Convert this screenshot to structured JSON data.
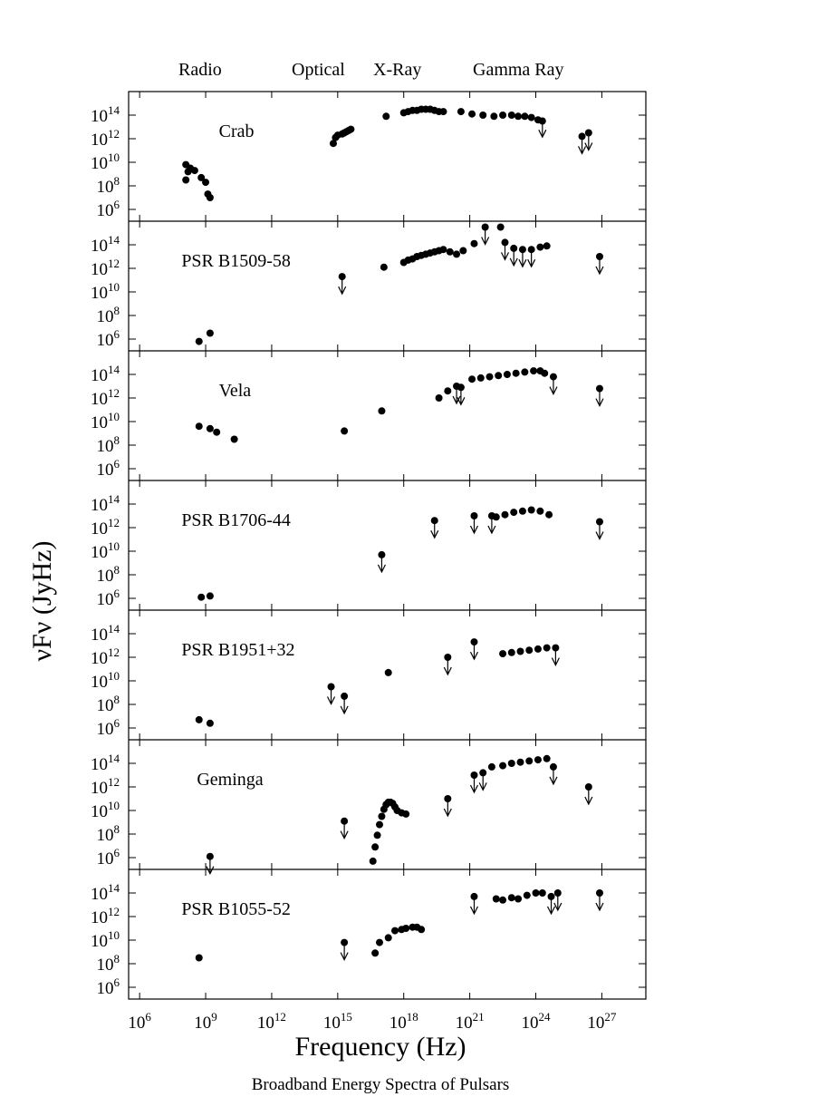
{
  "figure_caption": "Broadband Energy Spectra of Pulsars",
  "band_labels": [
    "Radio",
    "Optical",
    "X-Ray",
    "Gamma Ray"
  ],
  "chart_data": {
    "type": "scatter",
    "xlabel": "Frequency (Hz)",
    "ylabel": "νFν (JyHz)",
    "x_scale": "log",
    "y_scale": "log",
    "xlim_log10": [
      5.5,
      29
    ],
    "ylim_log10": [
      5,
      16
    ],
    "x_ticks_log10": [
      6,
      9,
      12,
      15,
      18,
      21,
      24,
      27
    ],
    "y_ticks_log10": [
      6,
      8,
      10,
      12,
      14
    ],
    "panels": [
      {
        "name": "Crab",
        "points": [
          [
            8.1,
            8.5
          ],
          [
            8.1,
            9.8
          ],
          [
            8.2,
            9.2
          ],
          [
            8.3,
            9.5
          ],
          [
            8.5,
            9.3
          ],
          [
            8.8,
            8.7
          ],
          [
            9.0,
            8.3
          ],
          [
            9.1,
            7.3
          ],
          [
            9.2,
            7.0
          ],
          [
            14.8,
            11.6
          ],
          [
            14.9,
            12.1
          ],
          [
            15.0,
            12.3
          ],
          [
            15.2,
            12.4
          ],
          [
            15.3,
            12.5
          ],
          [
            15.4,
            12.6
          ],
          [
            15.5,
            12.7
          ],
          [
            15.6,
            12.8
          ],
          [
            17.2,
            13.9
          ],
          [
            18.0,
            14.2
          ],
          [
            18.2,
            14.3
          ],
          [
            18.4,
            14.4
          ],
          [
            18.6,
            14.4
          ],
          [
            18.8,
            14.5
          ],
          [
            19.0,
            14.5
          ],
          [
            19.2,
            14.5
          ],
          [
            19.4,
            14.4
          ],
          [
            19.6,
            14.3
          ],
          [
            19.8,
            14.3
          ],
          [
            20.6,
            14.3
          ],
          [
            21.1,
            14.1
          ],
          [
            21.6,
            14.0
          ],
          [
            22.1,
            13.9
          ],
          [
            22.5,
            14.0
          ],
          [
            22.9,
            14.0
          ],
          [
            23.2,
            13.9
          ],
          [
            23.5,
            13.9
          ],
          [
            23.8,
            13.8
          ],
          [
            24.1,
            13.6
          ],
          [
            24.3,
            13.5
          ],
          [
            26.1,
            12.2
          ],
          [
            26.4,
            12.5
          ]
        ],
        "upper_limits": [
          [
            24.3,
            13.6
          ],
          [
            26.1,
            12.2
          ],
          [
            26.4,
            12.5
          ]
        ]
      },
      {
        "name": "PSR B1509-58",
        "points": [
          [
            8.7,
            5.8
          ],
          [
            9.2,
            6.5
          ],
          [
            15.2,
            11.3
          ],
          [
            17.1,
            12.1
          ],
          [
            18.0,
            12.5
          ],
          [
            18.2,
            12.7
          ],
          [
            18.4,
            12.8
          ],
          [
            18.6,
            13.0
          ],
          [
            18.8,
            13.1
          ],
          [
            19.0,
            13.2
          ],
          [
            19.2,
            13.3
          ],
          [
            19.4,
            13.4
          ],
          [
            19.6,
            13.5
          ],
          [
            19.8,
            13.6
          ],
          [
            20.1,
            13.4
          ],
          [
            20.4,
            13.2
          ],
          [
            20.7,
            13.5
          ],
          [
            21.2,
            14.1
          ],
          [
            21.7,
            15.5
          ],
          [
            22.4,
            15.5
          ],
          [
            22.6,
            14.2
          ],
          [
            23.0,
            13.7
          ],
          [
            23.4,
            13.6
          ],
          [
            23.8,
            13.6
          ],
          [
            24.2,
            13.8
          ],
          [
            24.5,
            13.9
          ],
          [
            26.9,
            13.0
          ]
        ],
        "upper_limits": [
          [
            15.2,
            11.3
          ],
          [
            21.7,
            15.5
          ],
          [
            22.6,
            14.2
          ],
          [
            23.0,
            13.7
          ],
          [
            23.4,
            13.6
          ],
          [
            23.8,
            13.6
          ],
          [
            26.9,
            13.0
          ]
        ]
      },
      {
        "name": "Vela",
        "points": [
          [
            8.7,
            9.6
          ],
          [
            9.2,
            9.4
          ],
          [
            9.5,
            9.1
          ],
          [
            10.3,
            8.5
          ],
          [
            15.3,
            9.2
          ],
          [
            17.0,
            10.9
          ],
          [
            19.6,
            12.0
          ],
          [
            20.0,
            12.6
          ],
          [
            20.4,
            13.0
          ],
          [
            20.6,
            12.9
          ],
          [
            21.1,
            13.6
          ],
          [
            21.5,
            13.7
          ],
          [
            21.9,
            13.8
          ],
          [
            22.3,
            13.9
          ],
          [
            22.7,
            14.0
          ],
          [
            23.1,
            14.1
          ],
          [
            23.5,
            14.2
          ],
          [
            23.9,
            14.3
          ],
          [
            24.2,
            14.3
          ],
          [
            24.4,
            14.1
          ],
          [
            24.8,
            13.8
          ],
          [
            26.9,
            12.8
          ]
        ],
        "upper_limits": [
          [
            20.4,
            13.0
          ],
          [
            20.6,
            12.9
          ],
          [
            24.8,
            13.8
          ],
          [
            26.9,
            12.8
          ]
        ]
      },
      {
        "name": "PSR B1706-44",
        "points": [
          [
            8.8,
            6.1
          ],
          [
            9.2,
            6.2
          ],
          [
            17.0,
            9.7
          ],
          [
            19.4,
            12.6
          ],
          [
            21.2,
            13.0
          ],
          [
            22.0,
            13.0
          ],
          [
            22.2,
            12.9
          ],
          [
            22.6,
            13.1
          ],
          [
            23.0,
            13.3
          ],
          [
            23.4,
            13.4
          ],
          [
            23.8,
            13.5
          ],
          [
            24.2,
            13.4
          ],
          [
            24.6,
            13.1
          ],
          [
            26.9,
            12.5
          ]
        ],
        "upper_limits": [
          [
            17.0,
            9.7
          ],
          [
            19.4,
            12.6
          ],
          [
            21.2,
            13.0
          ],
          [
            22.0,
            13.0
          ],
          [
            26.9,
            12.5
          ]
        ]
      },
      {
        "name": "PSR B1951+32",
        "points": [
          [
            8.7,
            6.7
          ],
          [
            9.2,
            6.4
          ],
          [
            14.7,
            9.5
          ],
          [
            15.3,
            8.7
          ],
          [
            17.3,
            10.7
          ],
          [
            20.0,
            12.0
          ],
          [
            21.2,
            13.3
          ],
          [
            22.5,
            12.3
          ],
          [
            22.9,
            12.4
          ],
          [
            23.3,
            12.5
          ],
          [
            23.7,
            12.6
          ],
          [
            24.1,
            12.7
          ],
          [
            24.5,
            12.8
          ],
          [
            24.9,
            12.8
          ]
        ],
        "upper_limits": [
          [
            14.7,
            9.5
          ],
          [
            15.3,
            8.7
          ],
          [
            20.0,
            12.0
          ],
          [
            21.2,
            13.3
          ],
          [
            24.9,
            12.8
          ]
        ]
      },
      {
        "name": "Geminga",
        "points": [
          [
            9.2,
            6.1
          ],
          [
            15.3,
            9.1
          ],
          [
            16.6,
            5.7
          ],
          [
            16.7,
            6.9
          ],
          [
            16.8,
            7.9
          ],
          [
            16.9,
            8.8
          ],
          [
            17.0,
            9.5
          ],
          [
            17.1,
            10.1
          ],
          [
            17.2,
            10.5
          ],
          [
            17.3,
            10.7
          ],
          [
            17.4,
            10.7
          ],
          [
            17.5,
            10.6
          ],
          [
            17.6,
            10.3
          ],
          [
            17.7,
            10.0
          ],
          [
            17.9,
            9.8
          ],
          [
            18.1,
            9.7
          ],
          [
            20.0,
            11.0
          ],
          [
            21.2,
            13.0
          ],
          [
            21.6,
            13.2
          ],
          [
            22.0,
            13.7
          ],
          [
            22.5,
            13.8
          ],
          [
            22.9,
            14.0
          ],
          [
            23.3,
            14.1
          ],
          [
            23.7,
            14.2
          ],
          [
            24.1,
            14.3
          ],
          [
            24.5,
            14.4
          ],
          [
            24.8,
            13.7
          ],
          [
            26.4,
            12.0
          ]
        ],
        "upper_limits": [
          [
            9.2,
            6.1
          ],
          [
            15.3,
            9.1
          ],
          [
            20.0,
            11.0
          ],
          [
            21.2,
            13.0
          ],
          [
            21.6,
            13.2
          ],
          [
            24.8,
            13.7
          ],
          [
            26.4,
            12.0
          ]
        ]
      },
      {
        "name": "PSR B1055-52",
        "points": [
          [
            8.7,
            8.5
          ],
          [
            15.3,
            9.8
          ],
          [
            16.7,
            8.9
          ],
          [
            16.9,
            9.8
          ],
          [
            17.3,
            10.2
          ],
          [
            17.6,
            10.8
          ],
          [
            17.9,
            10.9
          ],
          [
            18.1,
            11.0
          ],
          [
            18.4,
            11.1
          ],
          [
            18.6,
            11.1
          ],
          [
            18.8,
            10.9
          ],
          [
            21.2,
            13.7
          ],
          [
            22.2,
            13.5
          ],
          [
            22.5,
            13.4
          ],
          [
            22.9,
            13.6
          ],
          [
            23.2,
            13.5
          ],
          [
            23.6,
            13.8
          ],
          [
            24.0,
            14.0
          ],
          [
            24.3,
            14.0
          ],
          [
            24.7,
            13.7
          ],
          [
            25.0,
            14.0
          ],
          [
            26.9,
            14.0
          ]
        ],
        "upper_limits": [
          [
            15.3,
            9.8
          ],
          [
            21.2,
            13.7
          ],
          [
            24.7,
            13.7
          ],
          [
            25.0,
            14.0
          ],
          [
            26.9,
            14.0
          ]
        ]
      }
    ]
  }
}
